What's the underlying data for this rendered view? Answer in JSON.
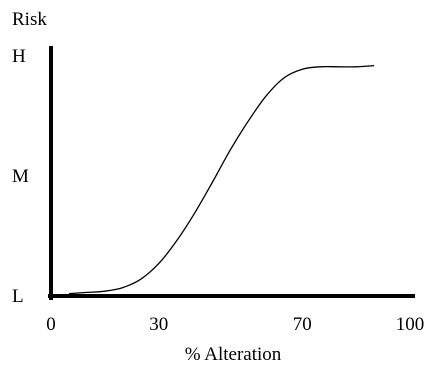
{
  "chart_data": {
    "type": "line",
    "title": "",
    "ylabel": "Risk",
    "xlabel": "% Alteration",
    "x_ticks": [
      {
        "value": 0,
        "label": "0"
      },
      {
        "value": 30,
        "label": "30"
      },
      {
        "value": 70,
        "label": "70"
      },
      {
        "value": 100,
        "label": "100"
      }
    ],
    "y_ticks": [
      {
        "value": 0,
        "label": "L"
      },
      {
        "value": 1,
        "label": "M"
      },
      {
        "value": 2,
        "label": "H"
      }
    ],
    "xlim": [
      0,
      100
    ],
    "ylim": [
      0,
      2
    ],
    "grid": false,
    "legend": "none",
    "series": [
      {
        "x": [
          5,
          10,
          15,
          20,
          25,
          30,
          35,
          40,
          45,
          50,
          55,
          60,
          65,
          70,
          75,
          80,
          85,
          90
        ],
        "y": [
          0.02,
          0.03,
          0.04,
          0.07,
          0.14,
          0.27,
          0.46,
          0.69,
          0.95,
          1.22,
          1.46,
          1.67,
          1.82,
          1.89,
          1.91,
          1.91,
          1.91,
          1.92
        ],
        "color": "#000000"
      }
    ]
  }
}
